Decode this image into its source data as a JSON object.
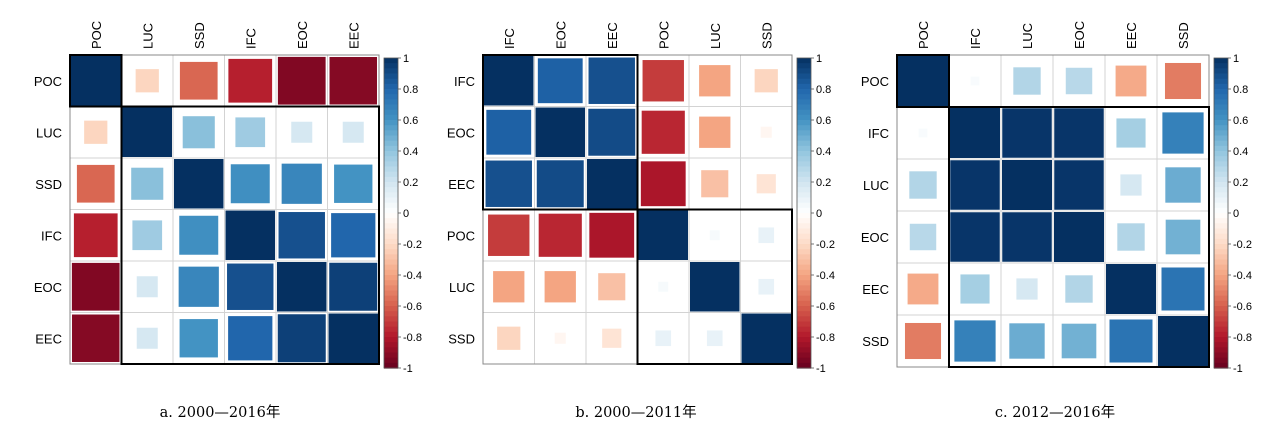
{
  "chart_data": [
    {
      "type": "heatmap",
      "caption": "a. 2000—2016年",
      "labels": [
        "POC",
        "LUC",
        "SSD",
        "IFC",
        "EOC",
        "EEC"
      ],
      "matrix": [
        [
          1.0,
          -0.22,
          -0.58,
          -0.78,
          -0.93,
          -0.92
        ],
        [
          -0.22,
          1.0,
          0.42,
          0.36,
          0.18,
          0.18
        ],
        [
          -0.58,
          0.42,
          1.0,
          0.62,
          0.66,
          0.6
        ],
        [
          -0.78,
          0.36,
          0.62,
          1.0,
          0.88,
          0.8
        ],
        [
          -0.93,
          0.18,
          0.66,
          0.88,
          1.0,
          0.94
        ],
        [
          -0.92,
          0.18,
          0.6,
          0.8,
          0.94,
          1.0
        ]
      ],
      "clusters": [
        [
          0,
          0
        ],
        [
          1,
          5
        ]
      ],
      "color_scale": {
        "min": -1,
        "max": 1,
        "ticks": [
          "1",
          "0.8",
          "0.6",
          "0.4",
          "0.2",
          "0",
          "-0.2",
          "-0.4",
          "-0.6",
          "-0.8",
          "-1"
        ]
      }
    },
    {
      "type": "heatmap",
      "caption": "b. 2000—2011年",
      "labels": [
        "IFC",
        "EOC",
        "EEC",
        "POC",
        "LUC",
        "SSD"
      ],
      "matrix": [
        [
          1.0,
          0.82,
          0.88,
          -0.7,
          -0.4,
          -0.22
        ],
        [
          0.82,
          1.0,
          0.9,
          -0.76,
          -0.4,
          -0.05
        ],
        [
          0.88,
          0.9,
          1.0,
          -0.82,
          -0.3,
          -0.15
        ],
        [
          -0.7,
          -0.76,
          -0.82,
          1.0,
          0.04,
          0.1
        ],
        [
          -0.4,
          -0.4,
          -0.3,
          0.04,
          1.0,
          0.1
        ],
        [
          -0.22,
          -0.05,
          -0.15,
          0.1,
          0.1,
          1.0
        ]
      ],
      "clusters": [
        [
          0,
          2
        ],
        [
          3,
          5
        ]
      ],
      "color_scale": {
        "min": -1,
        "max": 1,
        "ticks": [
          "1",
          "0.8",
          "0.6",
          "0.4",
          "0.2",
          "0",
          "-0.2",
          "-0.4",
          "-0.6",
          "-0.8",
          "-1"
        ]
      }
    },
    {
      "type": "heatmap",
      "caption": "c. 2012—2016年",
      "labels": [
        "POC",
        "IFC",
        "LUC",
        "EOC",
        "EEC",
        "SSD"
      ],
      "matrix": [
        [
          1.0,
          0.03,
          0.3,
          0.28,
          -0.38,
          -0.52
        ],
        [
          0.03,
          1.0,
          0.98,
          0.98,
          0.34,
          0.68
        ],
        [
          0.3,
          0.98,
          1.0,
          0.98,
          0.18,
          0.5
        ],
        [
          0.28,
          0.98,
          0.98,
          1.0,
          0.3,
          0.48
        ],
        [
          -0.38,
          0.34,
          0.18,
          0.3,
          1.0,
          0.74
        ],
        [
          -0.52,
          0.68,
          0.5,
          0.48,
          0.74,
          1.0
        ]
      ],
      "clusters": [
        [
          0,
          0
        ],
        [
          1,
          5
        ]
      ],
      "color_scale": {
        "min": -1,
        "max": 1,
        "ticks": [
          "1",
          "0.8",
          "0.6",
          "0.4",
          "0.2",
          "0",
          "-0.2",
          "-0.4",
          "-0.6",
          "-0.8",
          "-1"
        ]
      }
    }
  ]
}
